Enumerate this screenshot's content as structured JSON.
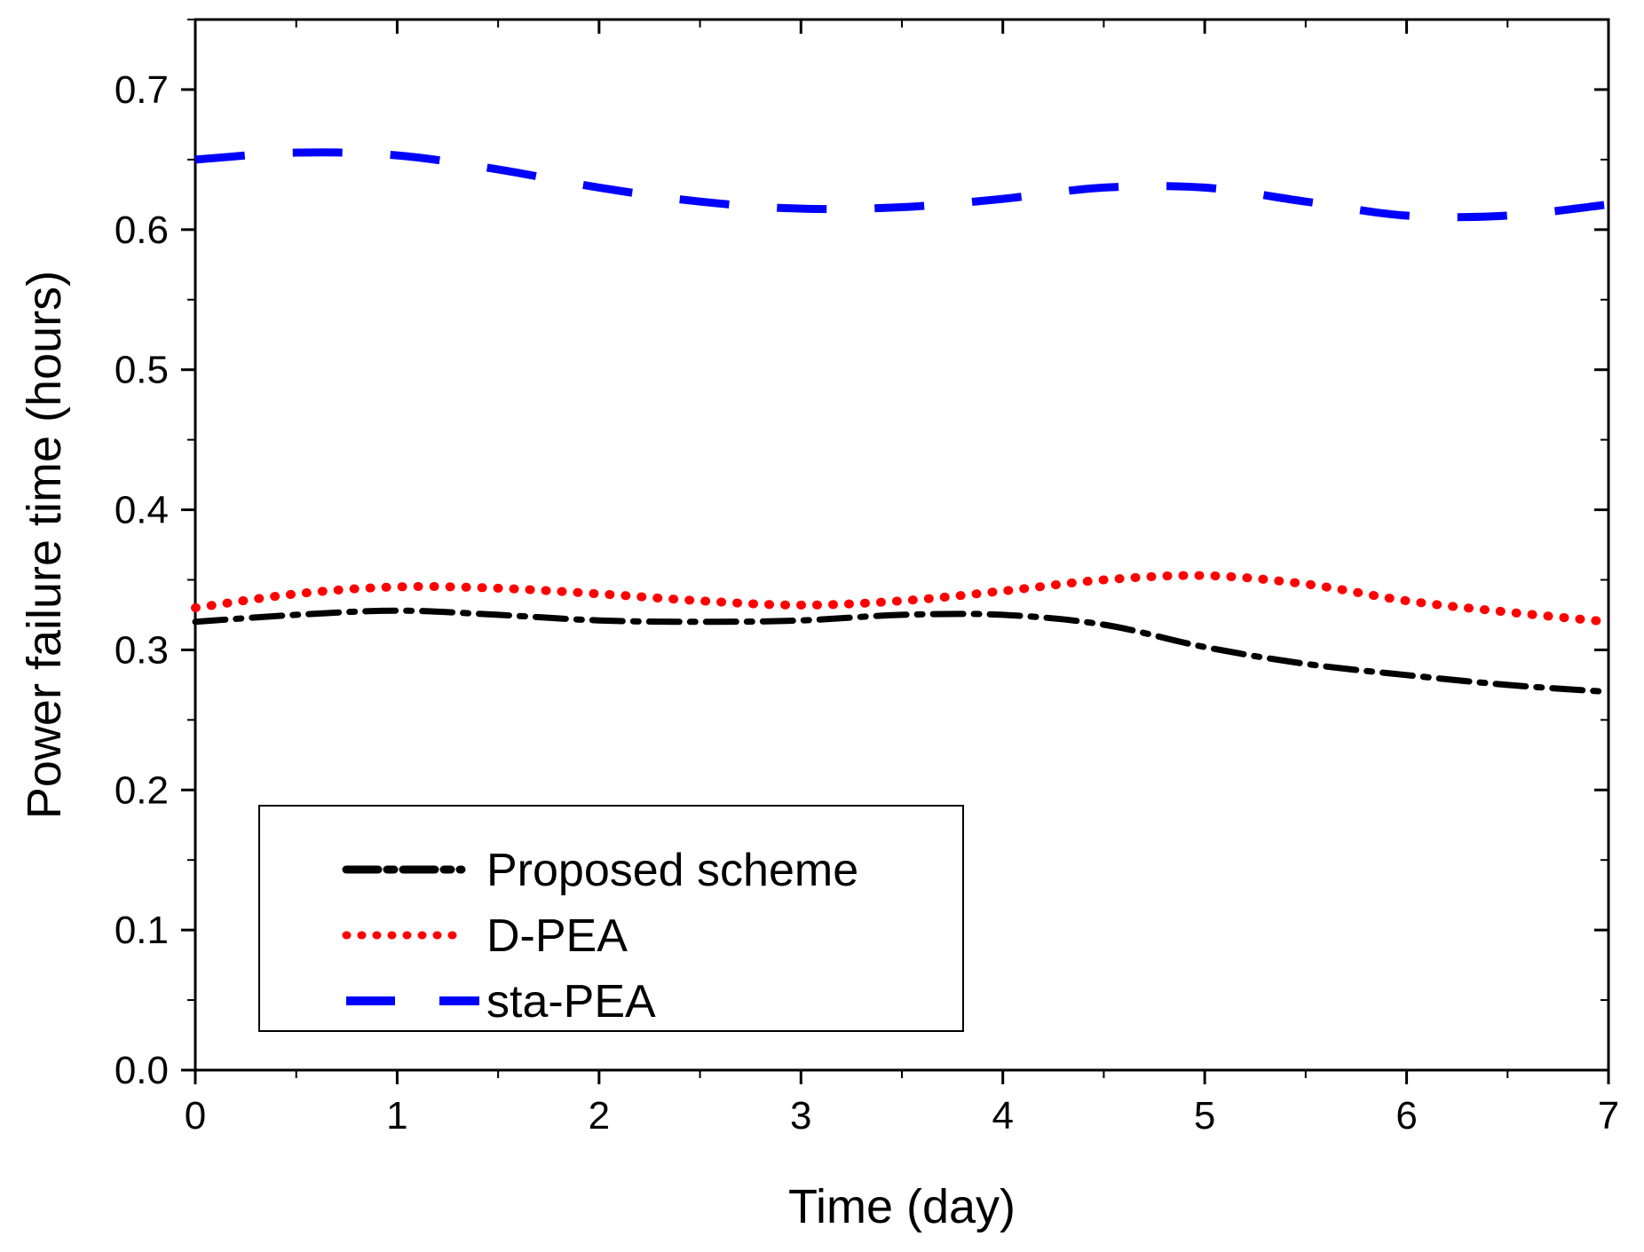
{
  "chart_data": {
    "type": "line",
    "title": "",
    "xlabel": "Time (day)",
    "ylabel": "Power failure time (hours)",
    "xlim": [
      0,
      7
    ],
    "ylim": [
      0.0,
      0.75
    ],
    "xticks": [
      "0",
      "1",
      "2",
      "3",
      "4",
      "5",
      "6",
      "7"
    ],
    "yticks": [
      "0.0",
      "0.1",
      "0.2",
      "0.3",
      "0.4",
      "0.5",
      "0.6",
      "0.7"
    ],
    "grid": false,
    "legend_position": "lower-left",
    "series": [
      {
        "name": "Proposed scheme",
        "style": "dash-dot",
        "color": "#000000",
        "x": [
          0,
          0.5,
          1,
          1.5,
          2,
          2.5,
          3,
          3.5,
          4,
          4.5,
          5,
          5.5,
          6,
          6.5,
          7
        ],
        "y": [
          0.32,
          0.325,
          0.328,
          0.325,
          0.321,
          0.32,
          0.321,
          0.325,
          0.325,
          0.318,
          0.302,
          0.29,
          0.282,
          0.275,
          0.27
        ]
      },
      {
        "name": "D-PEA",
        "style": "dotted",
        "color": "#ff0000",
        "x": [
          0,
          0.5,
          1,
          1.5,
          2,
          2.5,
          3,
          3.5,
          4,
          4.5,
          5,
          5.5,
          6,
          6.5,
          7
        ],
        "y": [
          0.33,
          0.34,
          0.345,
          0.344,
          0.34,
          0.335,
          0.332,
          0.335,
          0.342,
          0.35,
          0.353,
          0.347,
          0.335,
          0.327,
          0.32
        ]
      },
      {
        "name": "sta-PEA",
        "style": "dashed",
        "color": "#0000ff",
        "x": [
          0,
          0.5,
          1,
          1.5,
          2,
          2.5,
          3,
          3.5,
          4,
          4.5,
          5,
          5.5,
          6,
          6.5,
          7
        ],
        "y": [
          0.65,
          0.655,
          0.653,
          0.643,
          0.63,
          0.62,
          0.615,
          0.616,
          0.622,
          0.63,
          0.63,
          0.62,
          0.61,
          0.61,
          0.618
        ]
      }
    ]
  }
}
